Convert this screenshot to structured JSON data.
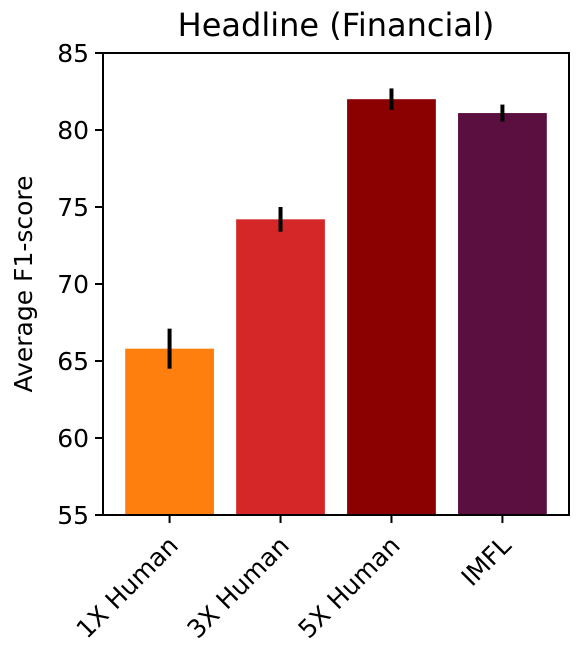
{
  "chart_data": {
    "type": "bar",
    "title": "Headline (Financial)",
    "xlabel": "",
    "ylabel": "Average F1-score",
    "ylim": [
      55,
      85
    ],
    "yticks": [
      55,
      60,
      65,
      70,
      75,
      80,
      85
    ],
    "grid": false,
    "categories": [
      "1X Human",
      "3X Human",
      "5X Human",
      "IMFL"
    ],
    "values": [
      65.8,
      74.2,
      82.0,
      81.1
    ],
    "errors": [
      1.3,
      0.8,
      0.7,
      0.55
    ],
    "colors": [
      "#ff7f0e",
      "#d62728",
      "#8b0000",
      "#5a0f40"
    ]
  }
}
